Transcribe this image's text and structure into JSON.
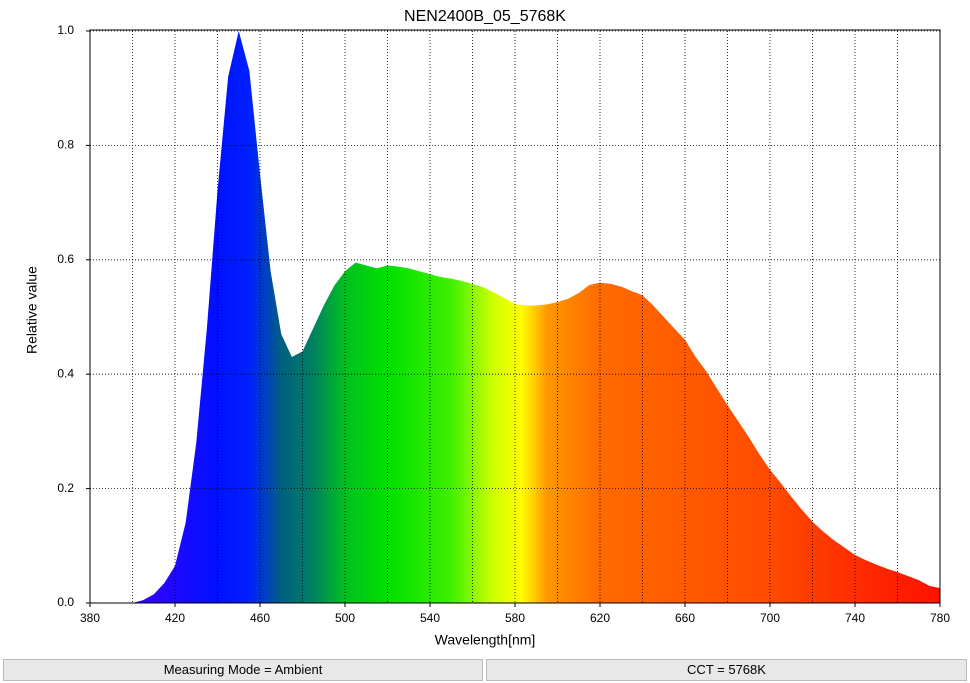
{
  "chart_data": {
    "type": "area",
    "title": "NEN2400B_05_5768K",
    "x_label": "Wavelength[nm]",
    "y_label": "Relative value",
    "x": [
      400,
      405,
      410,
      415,
      420,
      425,
      430,
      435,
      440,
      445,
      450,
      455,
      460,
      465,
      470,
      475,
      480,
      485,
      490,
      495,
      500,
      505,
      510,
      515,
      520,
      525,
      530,
      535,
      540,
      545,
      550,
      555,
      560,
      565,
      570,
      575,
      580,
      585,
      590,
      595,
      600,
      605,
      610,
      615,
      620,
      625,
      630,
      635,
      640,
      645,
      650,
      655,
      660,
      665,
      670,
      675,
      680,
      685,
      690,
      695,
      700,
      705,
      710,
      715,
      720,
      725,
      730,
      735,
      740,
      745,
      750,
      755,
      760,
      765,
      770,
      775,
      780
    ],
    "values": [
      0,
      0.005,
      0.015,
      0.035,
      0.065,
      0.14,
      0.28,
      0.48,
      0.72,
      0.92,
      1.0,
      0.93,
      0.75,
      0.58,
      0.47,
      0.43,
      0.44,
      0.48,
      0.52,
      0.555,
      0.58,
      0.595,
      0.59,
      0.585,
      0.59,
      0.588,
      0.585,
      0.58,
      0.575,
      0.57,
      0.567,
      0.563,
      0.558,
      0.552,
      0.543,
      0.533,
      0.523,
      0.52,
      0.52,
      0.522,
      0.526,
      0.532,
      0.542,
      0.556,
      0.56,
      0.558,
      0.553,
      0.545,
      0.538,
      0.52,
      0.5,
      0.48,
      0.46,
      0.43,
      0.405,
      0.375,
      0.346,
      0.318,
      0.29,
      0.26,
      0.233,
      0.21,
      0.186,
      0.163,
      0.142,
      0.125,
      0.11,
      0.097,
      0.084,
      0.075,
      0.067,
      0.06,
      0.054,
      0.047,
      0.04,
      0.03,
      0.026
    ],
    "colorstops": [
      {
        "x": 400,
        "color": "#3a00ff"
      },
      {
        "x": 440,
        "color": "#0010ff"
      },
      {
        "x": 455,
        "color": "#0020ff"
      },
      {
        "x": 470,
        "color": "#006080"
      },
      {
        "x": 485,
        "color": "#008060"
      },
      {
        "x": 500,
        "color": "#00c020"
      },
      {
        "x": 520,
        "color": "#00e000"
      },
      {
        "x": 550,
        "color": "#40f000"
      },
      {
        "x": 570,
        "color": "#d0ff00"
      },
      {
        "x": 583,
        "color": "#ffff00"
      },
      {
        "x": 595,
        "color": "#ff9800"
      },
      {
        "x": 620,
        "color": "#ff6a00"
      },
      {
        "x": 700,
        "color": "#ff4a00"
      },
      {
        "x": 780,
        "color": "#ff1000"
      }
    ],
    "xlim": [
      380,
      780
    ],
    "ylim": [
      0,
      1
    ],
    "xticks": [
      380,
      420,
      460,
      500,
      540,
      580,
      620,
      660,
      700,
      740,
      780
    ],
    "xgrid": [
      400,
      420,
      440,
      460,
      480,
      500,
      520,
      540,
      560,
      580,
      600,
      620,
      640,
      660,
      680,
      700,
      720,
      740,
      760
    ],
    "yticks": [
      {
        "value": 0,
        "label": "0.0"
      },
      {
        "value": 0.2,
        "label": "0.2"
      },
      {
        "value": 0.4,
        "label": "0.4"
      },
      {
        "value": 0.6,
        "label": "0.6"
      },
      {
        "value": 0.8,
        "label": "0.8"
      },
      {
        "value": 1,
        "label": "1.0"
      }
    ],
    "grid": true
  },
  "footer": [
    "Measuring Mode = Ambient",
    "CCT = 5768K"
  ]
}
